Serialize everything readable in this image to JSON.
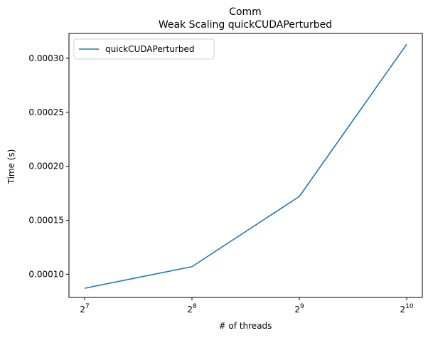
{
  "chart_data": {
    "type": "line",
    "title_lines": [
      "Comm",
      "Weak Scaling quickCUDAPerturbed"
    ],
    "xlabel": "# of threads",
    "ylabel": "Time (s)",
    "x_scale": "log2",
    "x": [
      128,
      256,
      512,
      1024
    ],
    "x_tick_labels": [
      {
        "base": "2",
        "exp": "7"
      },
      {
        "base": "2",
        "exp": "8"
      },
      {
        "base": "2",
        "exp": "9"
      },
      {
        "base": "2",
        "exp": "10"
      }
    ],
    "y_ticks": [
      0.0001,
      0.00015,
      0.0002,
      0.00025,
      0.0003
    ],
    "y_tick_labels": [
      "0.00010",
      "0.00015",
      "0.00020",
      "0.00025",
      "0.00030"
    ],
    "ylim": [
      7.85e-05,
      0.000323
    ],
    "series": [
      {
        "name": "quickCUDAPerturbed",
        "color": "#1f77b4",
        "values": [
          8.7e-05,
          0.000107,
          0.000172,
          0.000313
        ]
      }
    ],
    "legend_position": "upper-left",
    "grid": false
  }
}
